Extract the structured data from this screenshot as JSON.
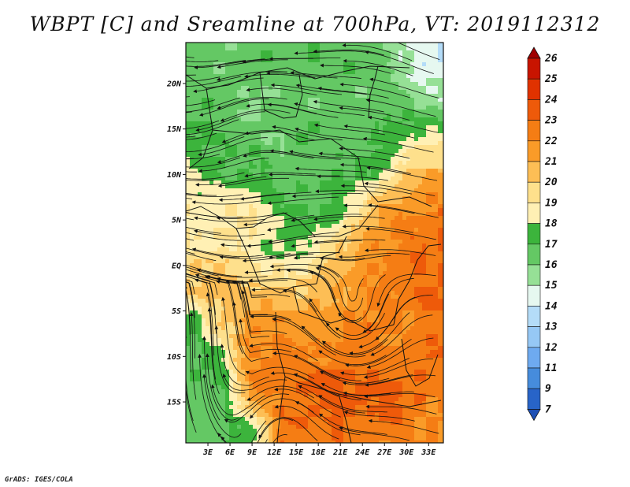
{
  "title": "WBPT [C] and Sreamline at 700hPa, VT: 2019112312",
  "credit": "GrADS: IGES/COLA",
  "map": {
    "lat_range": [
      -19.5,
      24.5
    ],
    "lon_range": [
      0,
      35
    ],
    "lat_ticks": [
      {
        "value": 20,
        "label": "20N"
      },
      {
        "value": 15,
        "label": "15N"
      },
      {
        "value": 10,
        "label": "10N"
      },
      {
        "value": 5,
        "label": "5N"
      },
      {
        "value": 0,
        "label": "EQ"
      },
      {
        "value": -5,
        "label": "5S"
      },
      {
        "value": -10,
        "label": "10S"
      },
      {
        "value": -15,
        "label": "15S"
      }
    ],
    "lon_ticks": [
      {
        "value": 3,
        "label": "3E"
      },
      {
        "value": 6,
        "label": "6E"
      },
      {
        "value": 9,
        "label": "9E"
      },
      {
        "value": 12,
        "label": "12E"
      },
      {
        "value": 15,
        "label": "15E"
      },
      {
        "value": 18,
        "label": "18E"
      },
      {
        "value": 21,
        "label": "21E"
      },
      {
        "value": 24,
        "label": "24E"
      },
      {
        "value": 27,
        "label": "27E"
      },
      {
        "value": 30,
        "label": "30E"
      },
      {
        "value": 33,
        "label": "33E"
      }
    ]
  },
  "colorbar": {
    "labels": [
      "26",
      "25",
      "24",
      "23",
      "22",
      "21",
      "20",
      "19",
      "18",
      "17",
      "16",
      "15",
      "14",
      "13",
      "12",
      "11",
      "9",
      "7"
    ],
    "colors": [
      "#a00000",
      "#c81400",
      "#e03200",
      "#ee5a0a",
      "#f57d14",
      "#fa9b28",
      "#fdbe55",
      "#fee08c",
      "#fff0b4",
      "#3cb43c",
      "#64c864",
      "#96e096",
      "#e6f8f0",
      "#b4dcf8",
      "#96c8f5",
      "#6eaaf0",
      "#468cdc",
      "#2864c8",
      "#1e50b4"
    ]
  },
  "field": {
    "lats": [
      22,
      18,
      14,
      10,
      6,
      2,
      -2,
      -6,
      -10,
      -14,
      -18
    ],
    "lons": [
      1,
      5,
      9,
      13,
      17,
      21,
      25,
      29,
      33
    ],
    "wbpt": [
      [
        16.5,
        16.5,
        16.5,
        16.5,
        16.5,
        16.5,
        16.5,
        15.5,
        14.0
      ],
      [
        16.5,
        16.5,
        16.0,
        16.5,
        16.5,
        16.5,
        16.5,
        16.5,
        15.5
      ],
      [
        17.0,
        17.0,
        16.5,
        16.5,
        16.5,
        16.5,
        16.5,
        17.5,
        18.5
      ],
      [
        18.5,
        17.0,
        17.0,
        16.5,
        16.5,
        17.0,
        17.5,
        19.5,
        21.0
      ],
      [
        18.5,
        19.0,
        19.0,
        17.5,
        17.0,
        17.5,
        20.5,
        21.5,
        22.5
      ],
      [
        19.0,
        19.5,
        18.5,
        17.5,
        18.0,
        20.0,
        21.5,
        22.5,
        23.0
      ],
      [
        20.5,
        20.5,
        20.0,
        19.5,
        20.0,
        21.0,
        22.0,
        22.5,
        23.0
      ],
      [
        17.5,
        20.0,
        21.5,
        21.5,
        21.5,
        21.5,
        22.5,
        22.0,
        22.5
      ],
      [
        16.5,
        18.0,
        22.5,
        22.5,
        22.0,
        22.5,
        22.5,
        22.5,
        23.0
      ],
      [
        16.5,
        16.5,
        22.0,
        22.5,
        23.5,
        23.5,
        23.5,
        23.0,
        22.5
      ],
      [
        16.5,
        16.5,
        17.5,
        22.5,
        22.5,
        23.0,
        22.5,
        22.5,
        22.0
      ]
    ]
  }
}
